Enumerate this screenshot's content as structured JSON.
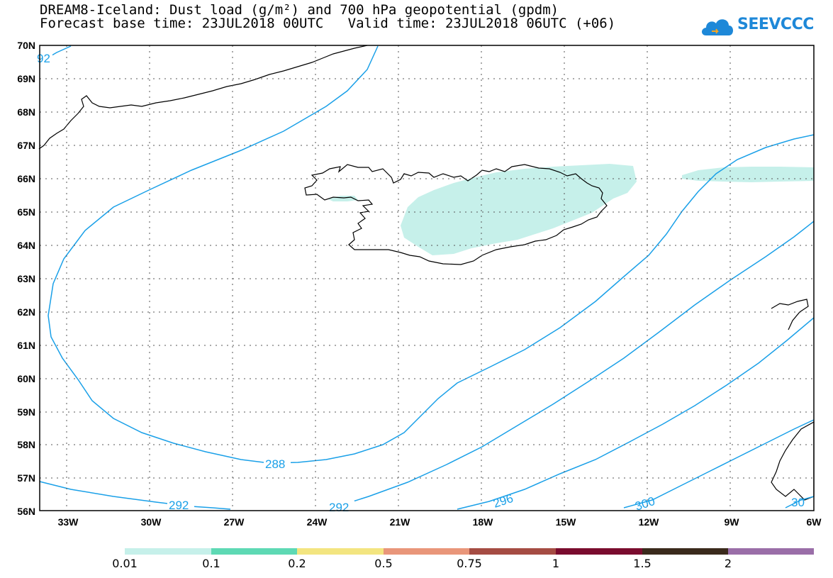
{
  "title_line1": "DREAM8-Iceland: Dust load (g/m²) and 700 hPa geopotential (gpdm)",
  "title_line2": "Forecast base time: 23JUL2018 00UTC   Valid time: 23JUL2018 06UTC (+06)",
  "logo_text": "SEEVCCC",
  "map": {
    "lon_labels": [
      "33W",
      "30W",
      "27W",
      "24W",
      "21W",
      "18W",
      "15W",
      "12W",
      "9W",
      "6W"
    ],
    "lat_labels": [
      "70N",
      "69N",
      "68N",
      "67N",
      "66N",
      "65N",
      "64N",
      "63N",
      "62N",
      "61N",
      "60N",
      "59N",
      "58N",
      "57N",
      "56N"
    ],
    "contour_labels": [
      "92",
      "288",
      "292",
      "292",
      "296",
      "300",
      "30"
    ],
    "contour_color": "#1aa0e8",
    "dust_color": "#c6f0ea"
  },
  "colorbar": {
    "colors": [
      "#c6f0ea",
      "#5ed9b4",
      "#f3e580",
      "#e9967a",
      "#a54c43",
      "#7a0c2e",
      "#3a2a1c",
      "#9a6ea8"
    ],
    "labels": [
      "0.01",
      "0.1",
      "0.2",
      "0.5",
      "0.75",
      "1",
      "1.5",
      "2"
    ]
  }
}
